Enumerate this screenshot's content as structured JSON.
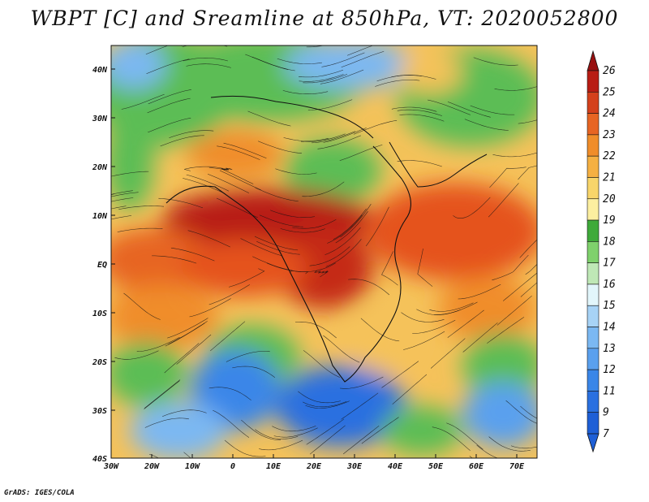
{
  "title": "WBPT [C] and Sreamline at 850hPa, VT: 2020052800",
  "credit": "GrADS: IGES/COLA",
  "lat_labels": [
    "40N",
    "30N",
    "20N",
    "10N",
    "EQ",
    "10S",
    "20S",
    "30S",
    "40S"
  ],
  "lon_labels": [
    "30W",
    "20W",
    "10W",
    "0",
    "10E",
    "20E",
    "30E",
    "40E",
    "50E",
    "60E",
    "70E"
  ],
  "colorbar": {
    "levels": [
      "7",
      "9",
      "11",
      "12",
      "13",
      "14",
      "15",
      "16",
      "17",
      "18",
      "19",
      "20",
      "21",
      "22",
      "23",
      "24",
      "25",
      "26"
    ],
    "colors": [
      "#1e5fd6",
      "#2a70e0",
      "#3a86e8",
      "#5aa0ee",
      "#7bb8f2",
      "#a7d3f6",
      "#e2f6fb",
      "#bfe8b6",
      "#7fd16c",
      "#3faa3a",
      "#fcefa0",
      "#f8d56a",
      "#f5b042",
      "#f08d2a",
      "#e76523",
      "#d4411c",
      "#b81d14",
      "#981010"
    ]
  },
  "colors": {
    "cold": "#3a7fe0",
    "cool": "#9ccbf4",
    "green": "#5cbd55",
    "warm": "#f5c25a",
    "hot": "#e5521f",
    "hottest": "#b81d14"
  }
}
